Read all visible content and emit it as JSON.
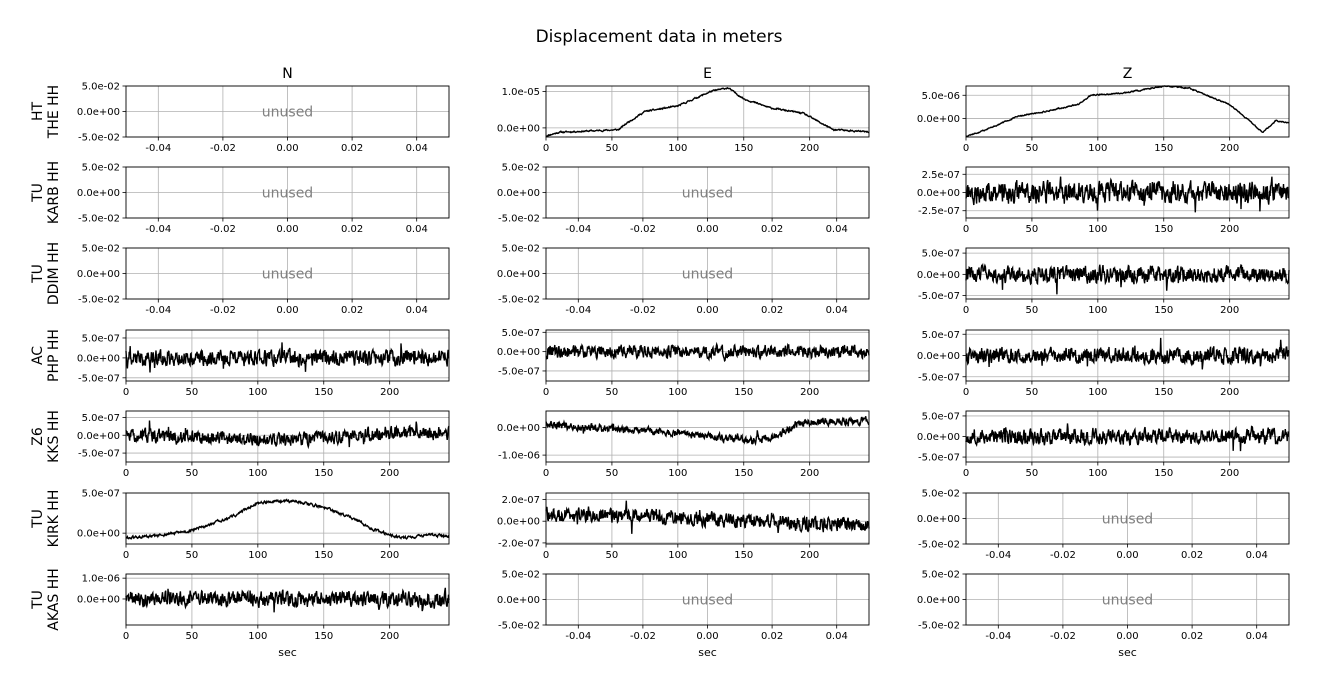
{
  "title": "Displacement data in meters",
  "columns": [
    "N",
    "E",
    "Z"
  ],
  "xlabel": "sec",
  "unused_label": "unused",
  "stations": [
    {
      "line1": "HT",
      "line2": "THE HH"
    },
    {
      "line1": "TU",
      "line2": "KARB HH"
    },
    {
      "line1": "TU",
      "line2": "DDIM HH"
    },
    {
      "line1": "AC",
      "line2": "PHP HH"
    },
    {
      "line1": "Z6",
      "line2": "KKS HH"
    },
    {
      "line1": "TU",
      "line2": "KIRK HH"
    },
    {
      "line1": "TU",
      "line2": "AKAS HH"
    }
  ],
  "styles": {
    "trace_color": "#000000",
    "grid_color": "#b0b0b0",
    "unused_color": "#808080"
  },
  "chart_data": {
    "type": "line",
    "grid": true,
    "duration_sec": 245,
    "unused_axis": {
      "xlim": [
        -0.05,
        0.05
      ],
      "xticks": [
        "-0.04",
        "-0.02",
        "0.00",
        "0.02",
        "0.04"
      ],
      "ylim": [
        -0.05,
        0.05
      ],
      "yticks": [
        {
          "v": 0.05,
          "t": "5.0e-02"
        },
        {
          "v": 0,
          "t": "0.0e+00"
        },
        {
          "v": -0.05,
          "t": "-5.0e-02"
        }
      ]
    },
    "time_xticks": [
      "0",
      "50",
      "100",
      "150",
      "200"
    ],
    "panels": [
      {
        "station": "HT THE HH",
        "component": "N",
        "unused": true
      },
      {
        "station": "HT THE HH",
        "component": "E",
        "unused": false,
        "ylim": [
          -2.5e-06,
          1.15e-05
        ],
        "yticks": [
          {
            "v": 1e-05,
            "t": "1.0e-05"
          },
          {
            "v": 0,
            "t": "0.0e+00"
          }
        ],
        "kind": "trend",
        "noise": 4e-07,
        "seed": 11,
        "x": [
          0,
          10,
          55,
          62,
          75,
          100,
          125,
          138,
          150,
          170,
          195,
          218,
          240,
          245
        ],
        "y": [
          -2.2e-06,
          -1.2e-06,
          -5e-07,
          1.5e-06,
          4.5e-06,
          6e-06,
          1e-05,
          1.1e-05,
          8e-06,
          5.5e-06,
          4e-06,
          -5e-07,
          -1e-06,
          -1.2e-06
        ]
      },
      {
        "station": "HT THE HH",
        "component": "Z",
        "unused": false,
        "ylim": [
          -4e-06,
          7e-06
        ],
        "yticks": [
          {
            "v": 5e-06,
            "t": "5.0e-06"
          },
          {
            "v": 0,
            "t": "0.0e+00"
          }
        ],
        "kind": "trend",
        "noise": 2.5e-07,
        "seed": 12,
        "x": [
          0,
          10,
          40,
          60,
          85,
          95,
          120,
          150,
          170,
          200,
          215,
          225,
          235,
          245
        ],
        "y": [
          -3.8e-06,
          -3e-06,
          5e-07,
          1.5e-06,
          3e-06,
          5e-06,
          5.5e-06,
          7e-06,
          6.5e-06,
          3e-06,
          -5e-07,
          -3e-06,
          -5e-07,
          -1e-06
        ]
      },
      {
        "station": "TU KARB HH",
        "component": "N",
        "unused": true
      },
      {
        "station": "TU KARB HH",
        "component": "E",
        "unused": true
      },
      {
        "station": "TU KARB HH",
        "component": "Z",
        "unused": false,
        "ylim": [
          -3.5e-07,
          3.5e-07
        ],
        "yticks": [
          {
            "v": 2.5e-07,
            "t": "2.5e-07"
          },
          {
            "v": 0,
            "t": "0.0e+00"
          },
          {
            "v": -2.5e-07,
            "t": "-2.5e-07"
          }
        ],
        "kind": "noise",
        "amp": 1.4e-07,
        "seed": 21,
        "x": [
          0,
          245
        ],
        "y": [
          0,
          0
        ]
      },
      {
        "station": "TU DDIM HH",
        "component": "N",
        "unused": true
      },
      {
        "station": "TU DDIM HH",
        "component": "E",
        "unused": true
      },
      {
        "station": "TU DDIM HH",
        "component": "Z",
        "unused": false,
        "ylim": [
          -5.8e-07,
          6.2e-07
        ],
        "yticks": [
          {
            "v": 5e-07,
            "t": "5.0e-07"
          },
          {
            "v": 0,
            "t": "0.0e+00"
          },
          {
            "v": -5e-07,
            "t": "-5.0e-07"
          }
        ],
        "kind": "noise",
        "amp": 1.9e-07,
        "seed": 31,
        "x": [
          0,
          245
        ],
        "y": [
          0,
          0
        ]
      },
      {
        "station": "AC PHP HH",
        "component": "N",
        "unused": false,
        "ylim": [
          -5.8e-07,
          7e-07
        ],
        "yticks": [
          {
            "v": 5e-07,
            "t": "5.0e-07"
          },
          {
            "v": 0,
            "t": "0.0e+00"
          },
          {
            "v": -5e-07,
            "t": "-5.0e-07"
          }
        ],
        "kind": "noise",
        "amp": 1.9e-07,
        "seed": 41,
        "x": [
          0,
          245
        ],
        "y": [
          0,
          0
        ]
      },
      {
        "station": "AC PHP HH",
        "component": "E",
        "unused": false,
        "ylim": [
          -7.6e-07,
          5.6e-07
        ],
        "yticks": [
          {
            "v": 5e-07,
            "t": "5.0e-07"
          },
          {
            "v": 0,
            "t": "0.0e+00"
          },
          {
            "v": -5e-07,
            "t": "-5.0e-07"
          }
        ],
        "kind": "noise",
        "amp": 1.6e-07,
        "seed": 42,
        "x": [
          0,
          245
        ],
        "y": [
          0,
          0
        ]
      },
      {
        "station": "AC PHP HH",
        "component": "Z",
        "unused": false,
        "ylim": [
          -6e-07,
          6e-07
        ],
        "yticks": [
          {
            "v": 5e-07,
            "t": "5.0e-07"
          },
          {
            "v": 0,
            "t": "0.0e+00"
          },
          {
            "v": -5e-07,
            "t": "-5.0e-07"
          }
        ],
        "kind": "noise",
        "amp": 1.8e-07,
        "seed": 43,
        "x": [
          0,
          245
        ],
        "y": [
          0,
          0
        ]
      },
      {
        "station": "Z6 KKS HH",
        "component": "N",
        "unused": false,
        "ylim": [
          -7.5e-07,
          6.8e-07
        ],
        "yticks": [
          {
            "v": 5e-07,
            "t": "5.0e-07"
          },
          {
            "v": 0,
            "t": "0.0e+00"
          },
          {
            "v": -5e-07,
            "t": "-5.0e-07"
          }
        ],
        "kind": "noise",
        "amp": 1.8e-07,
        "seed": 51,
        "x": [
          0,
          60,
          120,
          160,
          200,
          245
        ],
        "y": [
          1e-08,
          -5e-08,
          -1.5e-07,
          -5e-08,
          8e-08,
          5e-08
        ]
      },
      {
        "station": "Z6 KKS HH",
        "component": "E",
        "unused": false,
        "ylim": [
          -1.25e-06,
          6e-07
        ],
        "yticks": [
          {
            "v": 0,
            "t": "0.0e+00"
          },
          {
            "v": -1e-06,
            "t": "-1.0e-06"
          }
        ],
        "kind": "noise",
        "amp": 1.3e-07,
        "seed": 52,
        "x": [
          0,
          40,
          100,
          150,
          170,
          195,
          245
        ],
        "y": [
          1e-07,
          0.0,
          -2e-07,
          -4.5e-07,
          -4e-07,
          2e-07,
          2.5e-07
        ]
      },
      {
        "station": "Z6 KKS HH",
        "component": "Z",
        "unused": false,
        "ylim": [
          -6.2e-07,
          6.2e-07
        ],
        "yticks": [
          {
            "v": 5e-07,
            "t": "5.0e-07"
          },
          {
            "v": 0,
            "t": "0.0e+00"
          },
          {
            "v": -5e-07,
            "t": "-5.0e-07"
          }
        ],
        "kind": "noise",
        "amp": 1.8e-07,
        "seed": 53,
        "x": [
          0,
          245
        ],
        "y": [
          0,
          0
        ]
      },
      {
        "station": "TU KIRK HH",
        "component": "N",
        "unused": false,
        "ylim": [
          -1.35e-07,
          5e-07
        ],
        "yticks": [
          {
            "v": 5e-07,
            "t": "5.0e-07"
          },
          {
            "v": 0,
            "t": "0.0e+00"
          }
        ],
        "kind": "trend",
        "noise": 3.5e-08,
        "seed": 61,
        "x": [
          0,
          20,
          50,
          80,
          100,
          130,
          150,
          170,
          190,
          210,
          230,
          245
        ],
        "y": [
          -6e-08,
          -4e-08,
          3e-08,
          2e-07,
          3.8e-07,
          4e-07,
          3.2e-07,
          2e-07,
          3e-08,
          -6e-08,
          -2e-08,
          -4e-08
        ]
      },
      {
        "station": "TU KIRK HH",
        "component": "E",
        "unused": false,
        "ylim": [
          -2.1e-07,
          2.6e-07
        ],
        "yticks": [
          {
            "v": 2e-07,
            "t": "2.0e-07"
          },
          {
            "v": 0,
            "t": "0.0e+00"
          },
          {
            "v": -2e-07,
            "t": "-2.0e-07"
          }
        ],
        "kind": "noise",
        "amp": 6.5e-08,
        "seed": 62,
        "x": [
          0,
          60,
          140,
          200,
          245
        ],
        "y": [
          5e-08,
          6e-08,
          1e-08,
          -2e-08,
          -3e-08
        ]
      },
      {
        "station": "TU KIRK HH",
        "component": "Z",
        "unused": true
      },
      {
        "station": "TU AKAS HH",
        "component": "N",
        "unused": false,
        "ylim": [
          -1.25e-06,
          1.2e-06
        ],
        "yticks": [
          {
            "v": 1e-06,
            "t": "1.0e-06"
          },
          {
            "v": 0,
            "t": "0.0e+00"
          }
        ],
        "kind": "noise",
        "amp": 3.5e-07,
        "seed": 71,
        "x": [
          0,
          245
        ],
        "y": [
          0,
          0
        ]
      },
      {
        "station": "TU AKAS HH",
        "component": "E",
        "unused": true
      },
      {
        "station": "TU AKAS HH",
        "component": "Z",
        "unused": true
      }
    ]
  }
}
